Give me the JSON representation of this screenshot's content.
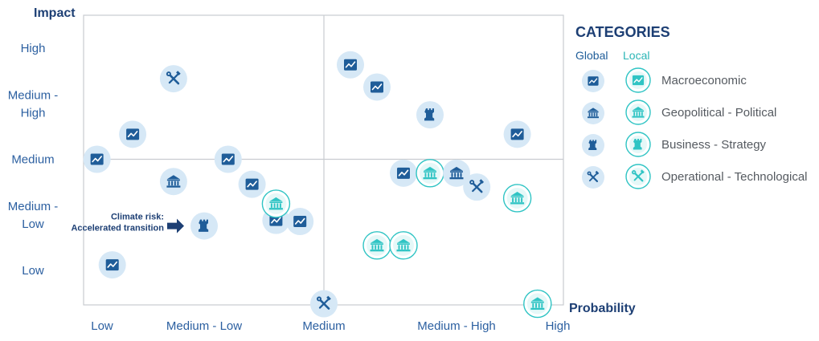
{
  "chart_data": {
    "type": "scatter",
    "x_axis": {
      "title": "Probability",
      "ticks": [
        "Low",
        "Medium - Low",
        "Medium",
        "Medium - High",
        "High"
      ],
      "range": [
        0,
        4
      ]
    },
    "y_axis": {
      "title": "Impact",
      "ticks": [
        {
          "label": [
            "Low"
          ],
          "value": 0
        },
        {
          "label": [
            "Medium -",
            "Low"
          ],
          "value": 1
        },
        {
          "label": [
            "Medium"
          ],
          "value": 2
        },
        {
          "label": [
            "Medium -",
            "High"
          ],
          "value": 3
        },
        {
          "label": [
            "High"
          ],
          "value": 4
        }
      ],
      "range": [
        -0.3,
        4.5
      ]
    },
    "quadrant_dividers": {
      "x": 2,
      "y": 2
    },
    "legend": {
      "title": "CATEGORIES",
      "global_label": "Global",
      "local_label": "Local",
      "items": [
        {
          "category": "macro",
          "label": "Macroeconomic",
          "icon": "trend-chart-icon"
        },
        {
          "category": "geo",
          "label": "Geopolitical - Political",
          "icon": "institution-building-icon"
        },
        {
          "category": "business",
          "label": "Business - Strategy",
          "icon": "chess-rook-icon"
        },
        {
          "category": "ops",
          "label": "Operational - Technological",
          "icon": "wrench-screwdriver-icon"
        }
      ]
    },
    "colors": {
      "global_fill": "#1f5d99",
      "global_bg": "#d6e8f6",
      "local_stroke": "#2fc4c4",
      "local_fill": "#e5f8f8"
    },
    "points": [
      {
        "category": "macro",
        "scope": "global",
        "x": 0.1,
        "y": 0.1
      },
      {
        "category": "macro",
        "scope": "global",
        "x": -0.05,
        "y": 2.0
      },
      {
        "category": "macro",
        "scope": "global",
        "x": 0.3,
        "y": 2.45
      },
      {
        "category": "ops",
        "scope": "global",
        "x": 0.7,
        "y": 3.45
      },
      {
        "category": "geo",
        "scope": "global",
        "x": 0.7,
        "y": 1.6
      },
      {
        "category": "business",
        "scope": "global",
        "x": 1.0,
        "y": 0.8,
        "annotation": [
          "Climate risk:",
          "Accelerated transition"
        ]
      },
      {
        "category": "macro",
        "scope": "global",
        "x": 1.2,
        "y": 2.0
      },
      {
        "category": "macro",
        "scope": "global",
        "x": 1.4,
        "y": 1.55
      },
      {
        "category": "macro",
        "scope": "global",
        "x": 1.6,
        "y": 0.9
      },
      {
        "category": "macro",
        "scope": "global",
        "x": 1.8,
        "y": 0.88
      },
      {
        "category": "geo",
        "scope": "local",
        "x": 1.6,
        "y": 1.2
      },
      {
        "category": "ops",
        "scope": "global",
        "x": 2.0,
        "y": -0.6
      },
      {
        "category": "macro",
        "scope": "global",
        "x": 2.2,
        "y": 3.7
      },
      {
        "category": "macro",
        "scope": "global",
        "x": 2.4,
        "y": 3.3
      },
      {
        "category": "business",
        "scope": "global",
        "x": 2.8,
        "y": 2.8
      },
      {
        "category": "macro",
        "scope": "global",
        "x": 2.6,
        "y": 1.75
      },
      {
        "category": "geo",
        "scope": "local",
        "x": 2.8,
        "y": 1.75
      },
      {
        "category": "geo",
        "scope": "global",
        "x": 3.0,
        "y": 1.75
      },
      {
        "category": "ops",
        "scope": "global",
        "x": 3.2,
        "y": 1.5
      },
      {
        "category": "macro",
        "scope": "global",
        "x": 3.6,
        "y": 2.45
      },
      {
        "category": "geo",
        "scope": "local",
        "x": 3.6,
        "y": 1.3
      },
      {
        "category": "geo",
        "scope": "local",
        "x": 2.4,
        "y": 0.45
      },
      {
        "category": "geo",
        "scope": "local",
        "x": 2.6,
        "y": 0.45
      },
      {
        "category": "geo",
        "scope": "local",
        "x": 3.8,
        "y": -0.6
      }
    ]
  }
}
